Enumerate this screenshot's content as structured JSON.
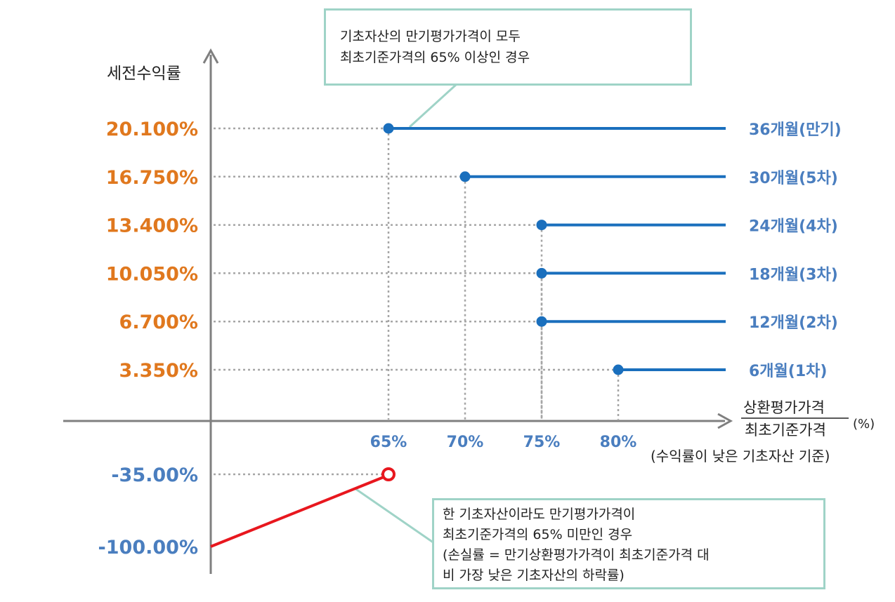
{
  "chart_data": {
    "type": "line",
    "y_axis_title": "세전수익률",
    "x_axis_title": {
      "numerator": "상환평가가격",
      "denominator": "최초기준가격",
      "unit": "(%)",
      "note": "(수익률이 낮은 기초자산 기준)"
    },
    "x_ticks": [
      "65%",
      "70%",
      "75%",
      "80%"
    ],
    "series": [
      {
        "name": "36개월(만기)",
        "x": 65,
        "y": 20.1,
        "y_label": "20.100%"
      },
      {
        "name": "30개월(5차)",
        "x": 70,
        "y": 16.75,
        "y_label": "16.750%"
      },
      {
        "name": "24개월(4차)",
        "x": 75,
        "y": 13.4,
        "y_label": "13.400%"
      },
      {
        "name": "18개월(3차)",
        "x": 75,
        "y": 10.05,
        "y_label": "10.050%"
      },
      {
        "name": "12개월(2차)",
        "x": 75,
        "y": 6.7,
        "y_label": "6.700%"
      },
      {
        "name": "6개월(1차)",
        "x": 80,
        "y": 3.35,
        "y_label": "3.350%"
      }
    ],
    "loss": {
      "from": {
        "x": 0,
        "y": -100.0,
        "y_label": "-100.00%"
      },
      "to": {
        "x": 65,
        "y": -35.0,
        "y_label": "-35.00%"
      }
    }
  },
  "callouts": {
    "top": [
      "기초자산의 만기평가가격이 모두",
      "최초기준가격의 65% 이상인 경우"
    ],
    "bottom": [
      "한 기초자산이라도 만기평가가격이",
      "최초기준가격의 65% 미만인 경우",
      "(손실률 = 만기상환평가가격이 최초기준가격 대",
      "비 가장 낮은 기초자산의 하락률)"
    ]
  },
  "colors": {
    "axis": "#7f7f7f",
    "guide": "#a6a6a6",
    "gain_line": "#1a6fbd",
    "gain_label": "#4a7ebf",
    "y_gain_label": "#e0781e",
    "y_loss_label": "#4a7ebf",
    "loss_line": "#e8171e",
    "callout_border": "#9fd3c7",
    "text": "#222222"
  }
}
